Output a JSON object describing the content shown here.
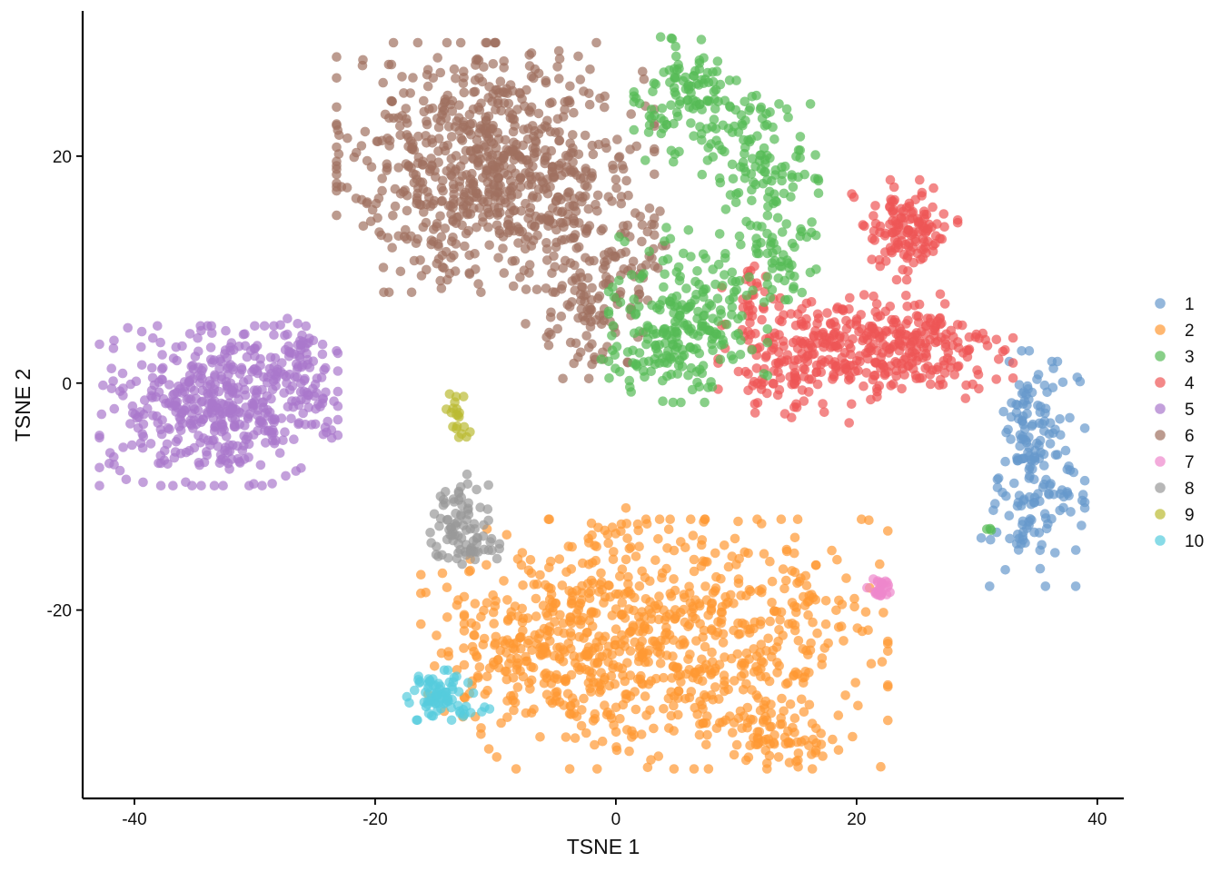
{
  "chart_data": {
    "type": "scatter",
    "title": "",
    "xlabel": "TSNE 1",
    "ylabel": "TSNE 2",
    "xlim": [
      -44.3,
      42.2
    ],
    "ylim": [
      -36.6,
      32.8
    ],
    "x_ticks": [
      -40,
      -20,
      0,
      20,
      40
    ],
    "y_ticks": [
      -20,
      0,
      20
    ],
    "x_tick_labels": [
      "-40",
      "-20",
      "0",
      "20",
      "40"
    ],
    "y_tick_labels": [
      "-20",
      "0",
      "20"
    ],
    "grid": false,
    "legend_position": "right",
    "marker_opacity": 0.7,
    "series": [
      {
        "name": "1",
        "color": "#6699CC",
        "regions": [
          {
            "center": [
              35,
              -8
            ],
            "spread": [
              1.8,
              4.5
            ],
            "count": 150
          },
          {
            "center": [
              34.2,
              -2
            ],
            "spread": [
              0.6,
              2.2
            ],
            "count": 25
          },
          {
            "center": [
              33,
              -13.5
            ],
            "spread": [
              1.2,
              0.6
            ],
            "count": 12
          }
        ]
      },
      {
        "name": "2",
        "color": "#FF9933",
        "regions": [
          {
            "center": [
              5,
              -23
            ],
            "spread": [
              8,
              5
            ],
            "count": 650
          },
          {
            "center": [
              -3,
              -21
            ],
            "spread": [
              6,
              3
            ],
            "count": 170
          },
          {
            "center": [
              13,
              -31
            ],
            "spread": [
              2.5,
              1.2
            ],
            "count": 60
          },
          {
            "center": [
              -9,
              -25
            ],
            "spread": [
              3,
              2
            ],
            "count": 60
          },
          {
            "center": [
              0,
              -13
            ],
            "spread": [
              2,
              1
            ],
            "count": 20
          },
          {
            "center": [
              19,
              -19.8
            ],
            "spread": [
              0.8,
              0.4
            ],
            "count": 3
          }
        ]
      },
      {
        "name": "3",
        "color": "#55BB55",
        "regions": [
          {
            "center": [
              7,
              25
            ],
            "spread": [
              2.5,
              2.5
            ],
            "count": 130
          },
          {
            "center": [
              12,
              18
            ],
            "spread": [
              2.2,
              3
            ],
            "count": 110
          },
          {
            "center": [
              6,
              6
            ],
            "spread": [
              3,
              3.5
            ],
            "count": 220
          },
          {
            "center": [
              14,
              11
            ],
            "spread": [
              1.2,
              2
            ],
            "count": 35
          },
          {
            "center": [
              3,
              1.5
            ],
            "spread": [
              2,
              1
            ],
            "count": 30
          },
          {
            "center": [
              31,
              -13
            ],
            "spread": [
              0.3,
              0.2
            ],
            "count": 3
          }
        ]
      },
      {
        "name": "4",
        "color": "#EE5555",
        "regions": [
          {
            "center": [
              24,
              13.5
            ],
            "spread": [
              2,
              2
            ],
            "count": 130
          },
          {
            "center": [
              22,
              3
            ],
            "spread": [
              5,
              2.2
            ],
            "count": 330
          },
          {
            "center": [
              14,
              2
            ],
            "spread": [
              2.5,
              2.5
            ],
            "count": 100
          },
          {
            "center": [
              11,
              7
            ],
            "spread": [
              1,
              1.5
            ],
            "count": 25
          }
        ]
      },
      {
        "name": "5",
        "color": "#AA77CC",
        "regions": [
          {
            "center": [
              -33,
              -2
            ],
            "spread": [
              4.5,
              3.2
            ],
            "count": 450
          },
          {
            "center": [
              -26.5,
              2
            ],
            "spread": [
              1.5,
              2
            ],
            "count": 60
          },
          {
            "center": [
              -24.3,
              -3
            ],
            "spread": [
              0.4,
              1
            ],
            "count": 10
          }
        ]
      },
      {
        "name": "6",
        "color": "#A07060",
        "regions": [
          {
            "center": [
              -10,
              19
            ],
            "spread": [
              6,
              5
            ],
            "count": 780
          },
          {
            "center": [
              -2,
              7
            ],
            "spread": [
              2.5,
              3
            ],
            "count": 110
          },
          {
            "center": [
              2,
              12
            ],
            "spread": [
              1.5,
              2
            ],
            "count": 25
          },
          {
            "center": [
              -11,
              28.3
            ],
            "spread": [
              0.3,
              0.2
            ],
            "count": 3
          }
        ]
      },
      {
        "name": "7",
        "color": "#EE88CC",
        "regions": [
          {
            "center": [
              22,
              -18
            ],
            "spread": [
              0.6,
              0.4
            ],
            "count": 25
          }
        ]
      },
      {
        "name": "8",
        "color": "#999999",
        "regions": [
          {
            "center": [
              -13,
              -12
            ],
            "spread": [
              1.1,
              1.8
            ],
            "count": 70
          },
          {
            "center": [
              -11,
              -14.5
            ],
            "spread": [
              1,
              0.8
            ],
            "count": 20
          }
        ]
      },
      {
        "name": "9",
        "color": "#BBBB33",
        "regions": [
          {
            "center": [
              -13,
              -3.5
            ],
            "spread": [
              0.5,
              1.2
            ],
            "count": 20
          }
        ]
      },
      {
        "name": "10",
        "color": "#55CCDD",
        "regions": [
          {
            "center": [
              -14.5,
              -27.5
            ],
            "spread": [
              1.3,
              1
            ],
            "count": 75
          },
          {
            "center": [
              -10.8,
              -28.8
            ],
            "spread": [
              0.3,
              0.2
            ],
            "count": 3
          }
        ]
      }
    ]
  }
}
